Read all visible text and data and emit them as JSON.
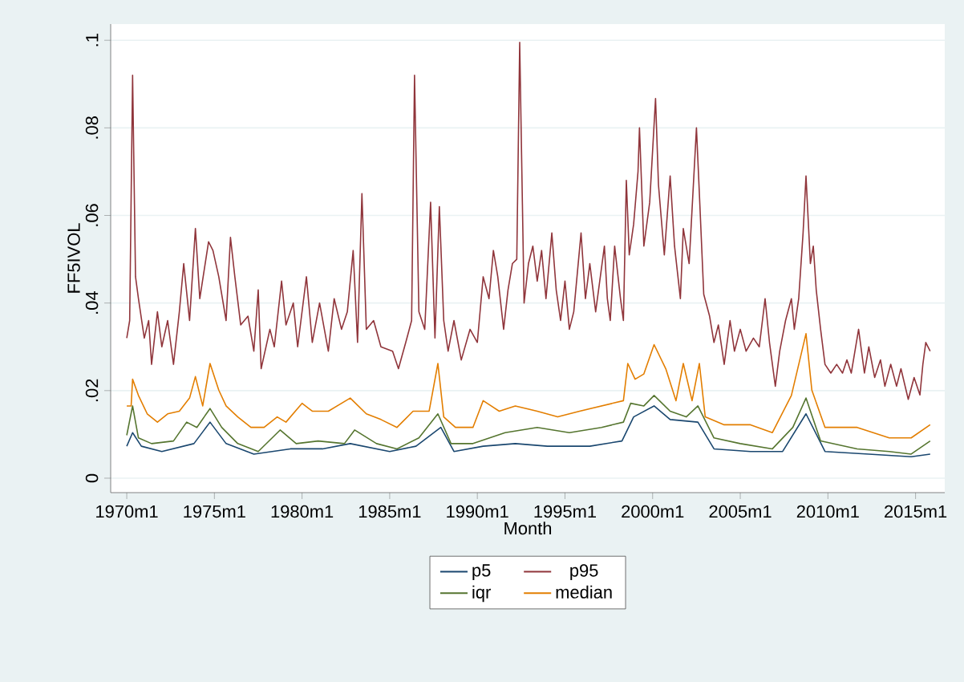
{
  "chart_data": {
    "type": "line",
    "ylabel": "FF5IVOL",
    "xlabel": "Month",
    "xlim": [
      "1969-02",
      "2016-09"
    ],
    "ylim": [
      -0.0033,
      0.1037
    ],
    "xticks": [
      {
        "value": "1970-01",
        "label": "1970m1"
      },
      {
        "value": "1975-01",
        "label": "1975m1"
      },
      {
        "value": "1980-01",
        "label": "1980m1"
      },
      {
        "value": "1985-01",
        "label": "1985m1"
      },
      {
        "value": "1990-01",
        "label": "1990m1"
      },
      {
        "value": "1995-01",
        "label": "1995m1"
      },
      {
        "value": "2000-01",
        "label": "2000m1"
      },
      {
        "value": "2005-01",
        "label": "2005m1"
      },
      {
        "value": "2010-01",
        "label": "2010m1"
      },
      {
        "value": "2015-01",
        "label": "2015m1"
      }
    ],
    "yticks": [
      0,
      {
        "value": 0.02,
        "label": ".02"
      },
      {
        "value": 0.04,
        "label": ".04"
      },
      {
        "value": 0.06,
        "label": ".06"
      },
      {
        "value": 0.08,
        "label": ".08"
      },
      {
        "value": 0.1,
        "label": ".1"
      }
    ],
    "grid": "y",
    "legend": "bottom",
    "series": [
      {
        "name": "p5",
        "color": "#1a476f",
        "x": [
          "1970-01",
          "1970-05",
          "1970-11",
          "1972-01",
          "1973-11",
          "1974-10",
          "1975-09",
          "1977-04",
          "1979-05",
          "1981-03",
          "1982-10",
          "1985-01",
          "1986-07",
          "1987-12",
          "1988-09",
          "1990-05",
          "1992-03",
          "1994-01",
          "1996-06",
          "1998-04",
          "1998-12",
          "2000-02",
          "2001-01",
          "2002-08",
          "2003-07",
          "2005-08",
          "2007-06",
          "2008-10",
          "2009-11",
          "2012-05",
          "2014-10",
          "2015-11"
        ],
        "values": [
          0.0073,
          0.0104,
          0.0073,
          0.0061,
          0.0079,
          0.0128,
          0.0079,
          0.0055,
          0.0067,
          0.0067,
          0.0079,
          0.0061,
          0.0073,
          0.0116,
          0.0061,
          0.0073,
          0.0079,
          0.0073,
          0.0073,
          0.0085,
          0.014,
          0.0165,
          0.0134,
          0.0128,
          0.0067,
          0.0061,
          0.0061,
          0.0147,
          0.0061,
          0.0055,
          0.0049,
          0.0055
        ]
      },
      {
        "name": "p95",
        "color": "#90353b",
        "x": [
          "1970-01",
          "1970-03",
          "1970-05",
          "1970-07",
          "1970-09",
          "1971-01",
          "1971-04",
          "1971-06",
          "1971-10",
          "1972-01",
          "1972-05",
          "1972-09",
          "1973-01",
          "1973-04",
          "1973-08",
          "1973-12",
          "1974-03",
          "1974-09",
          "1974-12",
          "1975-04",
          "1975-09",
          "1975-12",
          "1976-03",
          "1976-07",
          "1976-12",
          "1977-04",
          "1977-07",
          "1977-09",
          "1978-03",
          "1978-06",
          "1978-11",
          "1979-02",
          "1979-07",
          "1979-10",
          "1980-04",
          "1980-08",
          "1981-01",
          "1981-07",
          "1981-11",
          "1982-04",
          "1982-08",
          "1982-12",
          "1983-03",
          "1983-06",
          "1983-09",
          "1984-02",
          "1984-07",
          "1985-03",
          "1985-07",
          "1985-12",
          "1986-04",
          "1986-06",
          "1986-09",
          "1987-01",
          "1987-05",
          "1987-08",
          "1987-11",
          "1988-02",
          "1988-05",
          "1988-09",
          "1989-02",
          "1989-08",
          "1990-01",
          "1990-05",
          "1990-09",
          "1990-12",
          "1991-03",
          "1991-07",
          "1991-10",
          "1992-01",
          "1992-04",
          "1992-06",
          "1992-09",
          "1992-12",
          "1993-03",
          "1993-06",
          "1993-09",
          "1993-12",
          "1994-04",
          "1994-07",
          "1994-10",
          "1995-01",
          "1995-04",
          "1995-07",
          "1995-12",
          "1996-03",
          "1996-06",
          "1996-10",
          "1997-04",
          "1997-06",
          "1997-08",
          "1997-11",
          "1998-03",
          "1998-05",
          "1998-07",
          "1998-09",
          "1998-12",
          "1999-03",
          "1999-04",
          "1999-07",
          "1999-11",
          "2000-03",
          "2000-05",
          "2000-09",
          "2001-01",
          "2001-04",
          "2001-08",
          "2001-10",
          "2002-02",
          "2002-07",
          "2002-09",
          "2002-12",
          "2003-04",
          "2003-07",
          "2003-10",
          "2004-02",
          "2004-06",
          "2004-09",
          "2005-01",
          "2005-05",
          "2005-10",
          "2006-02",
          "2006-06",
          "2006-09",
          "2007-01",
          "2007-04",
          "2007-08",
          "2007-12",
          "2008-02",
          "2008-05",
          "2008-08",
          "2008-10",
          "2009-01",
          "2009-03",
          "2009-05",
          "2009-08",
          "2009-11",
          "2010-03",
          "2010-07",
          "2010-11",
          "2011-02",
          "2011-05",
          "2011-10",
          "2012-02",
          "2012-05",
          "2012-09",
          "2013-01",
          "2013-04",
          "2013-08",
          "2013-12",
          "2014-03",
          "2014-08",
          "2014-12",
          "2015-04",
          "2015-06",
          "2015-08",
          "2015-11"
        ],
        "values": [
          0.032,
          0.036,
          0.092,
          0.046,
          0.041,
          0.032,
          0.036,
          0.026,
          0.038,
          0.03,
          0.036,
          0.026,
          0.038,
          0.049,
          0.036,
          0.057,
          0.041,
          0.054,
          0.052,
          0.046,
          0.036,
          0.055,
          0.046,
          0.035,
          0.037,
          0.029,
          0.043,
          0.025,
          0.034,
          0.03,
          0.045,
          0.035,
          0.04,
          0.03,
          0.046,
          0.031,
          0.04,
          0.029,
          0.041,
          0.034,
          0.038,
          0.052,
          0.031,
          0.065,
          0.034,
          0.036,
          0.03,
          0.029,
          0.025,
          0.031,
          0.036,
          0.092,
          0.038,
          0.034,
          0.063,
          0.032,
          0.062,
          0.036,
          0.029,
          0.036,
          0.027,
          0.034,
          0.031,
          0.046,
          0.041,
          0.052,
          0.046,
          0.034,
          0.043,
          0.049,
          0.05,
          0.0995,
          0.04,
          0.049,
          0.053,
          0.045,
          0.052,
          0.041,
          0.056,
          0.043,
          0.036,
          0.045,
          0.034,
          0.038,
          0.056,
          0.041,
          0.049,
          0.038,
          0.053,
          0.041,
          0.036,
          0.053,
          0.041,
          0.036,
          0.068,
          0.051,
          0.058,
          0.07,
          0.08,
          0.053,
          0.063,
          0.0867,
          0.067,
          0.051,
          0.069,
          0.053,
          0.041,
          0.057,
          0.049,
          0.08,
          0.065,
          0.042,
          0.037,
          0.031,
          0.035,
          0.026,
          0.036,
          0.029,
          0.034,
          0.029,
          0.032,
          0.03,
          0.041,
          0.031,
          0.021,
          0.029,
          0.036,
          0.041,
          0.034,
          0.041,
          0.056,
          0.069,
          0.049,
          0.053,
          0.043,
          0.034,
          0.026,
          0.024,
          0.026,
          0.024,
          0.027,
          0.024,
          0.034,
          0.024,
          0.03,
          0.023,
          0.027,
          0.021,
          0.026,
          0.021,
          0.025,
          0.018,
          0.023,
          0.019,
          0.026,
          0.031,
          0.029
        ]
      },
      {
        "name": "iqr",
        "color": "#55752f",
        "x": [
          "1970-01",
          "1970-05",
          "1970-09",
          "1971-06",
          "1972-09",
          "1973-06",
          "1974-01",
          "1974-10",
          "1975-06",
          "1976-05",
          "1977-07",
          "1978-10",
          "1979-09",
          "1980-12",
          "1982-06",
          "1983-01",
          "1984-04",
          "1985-06",
          "1986-09",
          "1987-10",
          "1988-07",
          "1989-10",
          "1991-08",
          "1993-06",
          "1995-04",
          "1997-02",
          "1998-05",
          "1998-10",
          "1999-07",
          "2000-02",
          "2001-01",
          "2001-12",
          "2002-08",
          "2003-07",
          "2005-01",
          "2006-11",
          "2008-01",
          "2008-10",
          "2009-08",
          "2011-09",
          "2013-07",
          "2014-10",
          "2015-11"
        ],
        "values": [
          0.0098,
          0.0165,
          0.0092,
          0.0079,
          0.0085,
          0.0128,
          0.0116,
          0.0159,
          0.0116,
          0.0079,
          0.0061,
          0.011,
          0.0079,
          0.0085,
          0.0079,
          0.011,
          0.0079,
          0.0067,
          0.0092,
          0.0147,
          0.0079,
          0.0079,
          0.0104,
          0.0116,
          0.0104,
          0.0116,
          0.0128,
          0.0171,
          0.0165,
          0.0189,
          0.0153,
          0.014,
          0.0165,
          0.0092,
          0.0079,
          0.0067,
          0.0116,
          0.0183,
          0.0085,
          0.0067,
          0.0061,
          0.0055,
          0.0085
        ]
      },
      {
        "name": "median",
        "color": "#e37e00",
        "x": [
          "1970-01",
          "1970-04",
          "1970-05",
          "1970-09",
          "1971-03",
          "1971-10",
          "1972-05",
          "1973-01",
          "1973-08",
          "1973-12",
          "1974-05",
          "1974-10",
          "1975-04",
          "1975-09",
          "1976-05",
          "1977-02",
          "1977-11",
          "1978-08",
          "1979-02",
          "1980-01",
          "1980-08",
          "1981-07",
          "1982-10",
          "1983-09",
          "1984-07",
          "1985-06",
          "1986-05",
          "1987-04",
          "1987-10",
          "1988-02",
          "1988-10",
          "1989-10",
          "1990-05",
          "1991-04",
          "1992-03",
          "1993-06",
          "1994-08",
          "1995-11",
          "1997-02",
          "1998-05",
          "1998-08",
          "1999-01",
          "1999-07",
          "2000-02",
          "2000-10",
          "2001-05",
          "2001-10",
          "2002-04",
          "2002-09",
          "2003-01",
          "2004-02",
          "2005-08",
          "2006-11",
          "2007-12",
          "2008-10",
          "2009-02",
          "2009-11",
          "2011-09",
          "2013-07",
          "2014-10",
          "2015-11"
        ],
        "values": [
          0.0165,
          0.0165,
          0.0226,
          0.0189,
          0.0147,
          0.0128,
          0.0147,
          0.0153,
          0.0183,
          0.0232,
          0.0165,
          0.0262,
          0.0201,
          0.0165,
          0.014,
          0.0116,
          0.0116,
          0.014,
          0.0128,
          0.0171,
          0.0153,
          0.0153,
          0.0183,
          0.0147,
          0.0134,
          0.0116,
          0.0153,
          0.0153,
          0.0262,
          0.014,
          0.0116,
          0.0116,
          0.0177,
          0.0153,
          0.0165,
          0.0153,
          0.014,
          0.0153,
          0.0165,
          0.0177,
          0.0262,
          0.0226,
          0.0238,
          0.0305,
          0.025,
          0.0177,
          0.0262,
          0.0177,
          0.0262,
          0.014,
          0.0122,
          0.0122,
          0.0104,
          0.0189,
          0.033,
          0.0201,
          0.0116,
          0.0116,
          0.0092,
          0.0092,
          0.0122
        ]
      }
    ]
  }
}
